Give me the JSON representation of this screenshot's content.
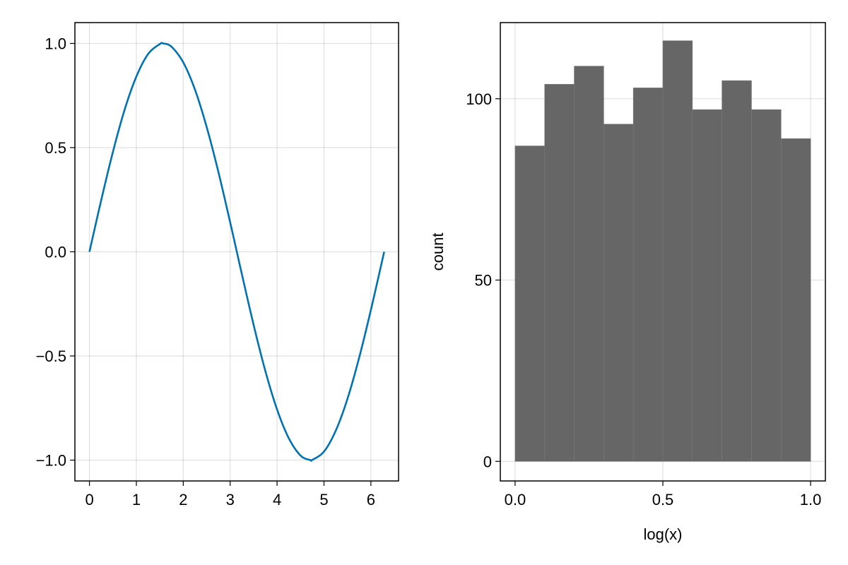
{
  "chart_data": [
    {
      "type": "line",
      "title": "",
      "xlabel": "",
      "ylabel": "",
      "xlim": [
        -0.31,
        6.59
      ],
      "ylim": [
        -1.1,
        1.1
      ],
      "xticks": [
        0,
        1,
        2,
        3,
        4,
        5,
        6
      ],
      "xtick_labels": [
        "0",
        "1",
        "2",
        "3",
        "4",
        "5",
        "6"
      ],
      "yticks": [
        1.0,
        0.5,
        0.0,
        -0.5,
        -1.0
      ],
      "ytick_labels": [
        "1.0",
        "0.5",
        "0.0",
        "−0.5",
        "−1.0"
      ],
      "grid": true,
      "series": [
        {
          "color": "#0072B2",
          "x": [
            0,
            0.25,
            0.5,
            0.75,
            1.0,
            1.25,
            1.5,
            1.5708,
            1.75,
            2.0,
            2.25,
            2.5,
            2.75,
            3.0,
            3.1416,
            3.25,
            3.5,
            3.75,
            4.0,
            4.25,
            4.5,
            4.7124,
            4.75,
            5.0,
            5.25,
            5.5,
            5.75,
            6.0,
            6.2832
          ],
          "y": [
            0,
            0.247,
            0.479,
            0.682,
            0.841,
            0.949,
            0.997,
            1.0,
            0.984,
            0.909,
            0.778,
            0.598,
            0.382,
            0.141,
            0.0,
            -0.108,
            -0.351,
            -0.572,
            -0.757,
            -0.895,
            -0.978,
            -1.0,
            -0.999,
            -0.959,
            -0.859,
            -0.706,
            -0.508,
            -0.279,
            0.0
          ]
        }
      ]
    },
    {
      "type": "bar",
      "subtype": "histogram",
      "title": "",
      "xlabel": "log(x)",
      "ylabel": "count",
      "xlim": [
        -0.05,
        1.05
      ],
      "ylim": [
        -5.4,
        121.0
      ],
      "xticks": [
        0.0,
        0.5,
        1.0
      ],
      "xtick_labels": [
        "0.0",
        "0.5",
        "1.0"
      ],
      "yticks": [
        0,
        50,
        100
      ],
      "ytick_labels": [
        "0",
        "50",
        "100"
      ],
      "grid": true,
      "bar_color": "#666666",
      "bin_edges": [
        0.0,
        0.1,
        0.2,
        0.3,
        0.4,
        0.5,
        0.6,
        0.7,
        0.8,
        0.9,
        1.0
      ],
      "values": [
        87,
        104,
        109,
        93,
        103,
        116,
        97,
        105,
        97,
        89
      ]
    }
  ]
}
